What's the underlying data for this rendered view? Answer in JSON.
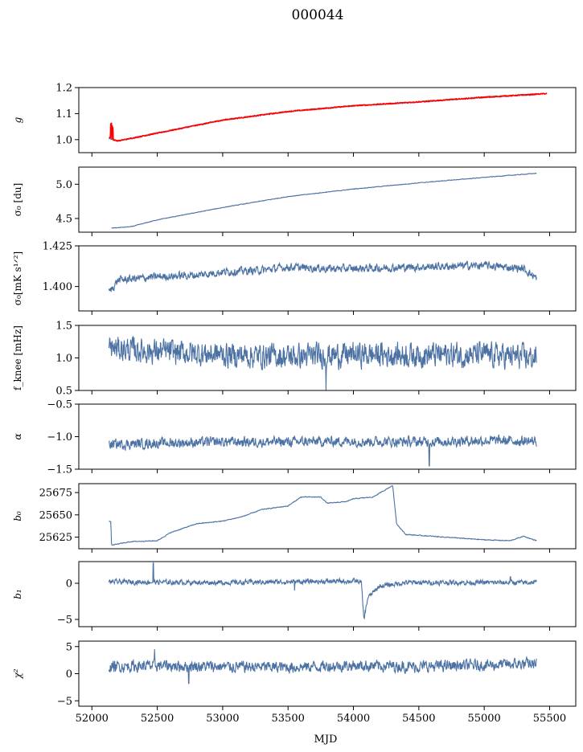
{
  "title": "000044",
  "xlabel": "MJD",
  "colors": {
    "series": "#4c72a4",
    "fit": "#ff0000",
    "axes": "#000000"
  },
  "chart_data": {
    "type": "line",
    "x_axis": {
      "range": [
        51900,
        55700
      ],
      "ticks": [
        52000,
        52500,
        53000,
        53500,
        54000,
        54500,
        55000,
        55500
      ],
      "tick_labels": [
        "52000",
        "52500",
        "53000",
        "53500",
        "54000",
        "54500",
        "55000",
        "55500"
      ]
    },
    "x_start": 52130,
    "x_end": 55400,
    "panels": [
      {
        "key": "g",
        "ylabel": "g",
        "ylim": [
          0.95,
          1.2
        ],
        "yticks": [
          1.0,
          1.1,
          1.2
        ],
        "ytick_labels": [
          "1.0",
          "1.1",
          "1.2"
        ],
        "series": [
          {
            "color": "#4c72a4",
            "anchors": [
              [
                52130,
                1.005
              ],
              [
                52150,
                1.0
              ],
              [
                52200,
                0.995
              ],
              [
                52300,
                1.005
              ],
              [
                52500,
                1.025
              ],
              [
                52800,
                1.055
              ],
              [
                53000,
                1.075
              ],
              [
                53500,
                1.108
              ],
              [
                54000,
                1.13
              ],
              [
                54500,
                1.145
              ],
              [
                55000,
                1.162
              ],
              [
                55400,
                1.174
              ]
            ],
            "noise": 0.002,
            "spikes": []
          },
          {
            "color": "#ff0000",
            "anchors": [
              [
                52130,
                1.01
              ],
              [
                52160,
                1.0
              ],
              [
                52200,
                0.995
              ],
              [
                52300,
                1.005
              ],
              [
                52500,
                1.025
              ],
              [
                52800,
                1.055
              ],
              [
                53000,
                1.075
              ],
              [
                53500,
                1.108
              ],
              [
                54000,
                1.13
              ],
              [
                54500,
                1.145
              ],
              [
                55000,
                1.163
              ],
              [
                55480,
                1.177
              ]
            ],
            "noise": 0.0015,
            "spikes": [
              [
                52145,
                1.06
              ],
              [
                52150,
                1.065
              ],
              [
                52155,
                1.055
              ],
              [
                52160,
                1.045
              ]
            ]
          }
        ]
      },
      {
        "key": "sigma0_du",
        "ylabel": "σ₀ [du]",
        "ylim": [
          4.3,
          5.25
        ],
        "yticks": [
          4.5,
          5.0
        ],
        "ytick_labels": [
          "4.5",
          "5.0"
        ],
        "series": [
          {
            "color": "#4c72a4",
            "anchors": [
              [
                52150,
                4.36
              ],
              [
                52300,
                4.38
              ],
              [
                52500,
                4.48
              ],
              [
                53000,
                4.66
              ],
              [
                53500,
                4.82
              ],
              [
                54000,
                4.93
              ],
              [
                54500,
                5.02
              ],
              [
                55000,
                5.1
              ],
              [
                55400,
                5.16
              ]
            ],
            "noise": 0.004,
            "spikes": []
          }
        ]
      },
      {
        "key": "sigma0_mK",
        "ylabel": "σ₀[mK s¹ᐟ²]",
        "ylim": [
          1.385,
          1.425
        ],
        "yticks": [
          1.4,
          1.425
        ],
        "ytick_labels": [
          "1.400",
          "1.425"
        ],
        "series": [
          {
            "color": "#4c72a4",
            "anchors": [
              [
                52130,
                1.396
              ],
              [
                52200,
                1.404
              ],
              [
                52500,
                1.406
              ],
              [
                52800,
                1.407
              ],
              [
                53000,
                1.409
              ],
              [
                53300,
                1.41
              ],
              [
                53500,
                1.412
              ],
              [
                53800,
                1.411
              ],
              [
                54000,
                1.411
              ],
              [
                54500,
                1.412
              ],
              [
                55000,
                1.413
              ],
              [
                55300,
                1.411
              ],
              [
                55400,
                1.405
              ]
            ],
            "noise": 0.0022,
            "spikes": []
          }
        ]
      },
      {
        "key": "fknee",
        "ylabel": "f_knee [mHz]",
        "ylim": [
          0.5,
          1.5
        ],
        "yticks": [
          0.5,
          1.0,
          1.5
        ],
        "ytick_labels": [
          "0.5",
          "1.0",
          "1.5"
        ],
        "series": [
          {
            "color": "#4c72a4",
            "anchors": [
              [
                52130,
                1.15
              ],
              [
                52500,
                1.1
              ],
              [
                53000,
                1.05
              ],
              [
                53500,
                1.02
              ],
              [
                54000,
                1.05
              ],
              [
                54500,
                1.05
              ],
              [
                55000,
                1.05
              ],
              [
                55400,
                1.0
              ]
            ],
            "noise": 0.17,
            "spikes": [
              [
                53790,
                0.5
              ]
            ]
          }
        ]
      },
      {
        "key": "alpha",
        "ylabel": "α",
        "ylim": [
          -1.5,
          -0.5
        ],
        "yticks": [
          -1.5,
          -1.0,
          -0.5
        ],
        "ytick_labels": [
          "−1.5",
          "−1.0",
          "−0.5"
        ],
        "series": [
          {
            "color": "#4c72a4",
            "anchors": [
              [
                52130,
                -1.12
              ],
              [
                52500,
                -1.1
              ],
              [
                53000,
                -1.08
              ],
              [
                53500,
                -1.08
              ],
              [
                54000,
                -1.07
              ],
              [
                54500,
                -1.08
              ],
              [
                55000,
                -1.06
              ],
              [
                55400,
                -1.07
              ]
            ],
            "noise": 0.07,
            "spikes": [
              [
                54580,
                -1.45
              ]
            ]
          }
        ]
      },
      {
        "key": "b0",
        "ylabel": "b₀",
        "ylim": [
          25612,
          25685
        ],
        "yticks": [
          25625,
          25650,
          25675
        ],
        "ytick_labels": [
          "25625",
          "25650",
          "25675"
        ],
        "series": [
          {
            "color": "#4c72a4",
            "anchors": [
              [
                52130,
                25643
              ],
              [
                52145,
                25642
              ],
              [
                52150,
                25616
              ],
              [
                52300,
                25620
              ],
              [
                52500,
                25621
              ],
              [
                52600,
                25630
              ],
              [
                52800,
                25640
              ],
              [
                53000,
                25643
              ],
              [
                53150,
                25648
              ],
              [
                53300,
                25656
              ],
              [
                53500,
                25660
              ],
              [
                53600,
                25670
              ],
              [
                53750,
                25670
              ],
              [
                53800,
                25663
              ],
              [
                53950,
                25665
              ],
              [
                54000,
                25668
              ],
              [
                54150,
                25670
              ],
              [
                54300,
                25683
              ],
              [
                54330,
                25640
              ],
              [
                54400,
                25628
              ],
              [
                54500,
                25627
              ],
              [
                55000,
                25622
              ],
              [
                55200,
                25621
              ],
              [
                55300,
                25626
              ],
              [
                55400,
                25621
              ]
            ],
            "noise": 0.4,
            "spikes": []
          }
        ]
      },
      {
        "key": "b1",
        "ylabel": "b₁",
        "ylim": [
          -6,
          3
        ],
        "yticks": [
          -5,
          0
        ],
        "ytick_labels": [
          "−5",
          "0"
        ],
        "series": [
          {
            "color": "#4c72a4",
            "anchors": [
              [
                52130,
                0.2
              ],
              [
                53000,
                0.1
              ],
              [
                54000,
                0.3
              ],
              [
                54060,
                0.2
              ],
              [
                54080,
                -5.0
              ],
              [
                54110,
                -2.0
              ],
              [
                54200,
                -0.4
              ],
              [
                54400,
                0.1
              ],
              [
                55400,
                0.1
              ]
            ],
            "noise": 0.3,
            "spikes": [
              [
                52470,
                2.8
              ],
              [
                53550,
                -1.0
              ],
              [
                55200,
                0.9
              ]
            ]
          }
        ]
      },
      {
        "key": "chi2",
        "ylabel": "χ²",
        "ylim": [
          -6,
          6
        ],
        "yticks": [
          -5,
          0,
          5
        ],
        "ytick_labels": [
          "−5",
          "0",
          "5"
        ],
        "series": [
          {
            "color": "#4c72a4",
            "anchors": [
              [
                52130,
                1.3
              ],
              [
                52500,
                1.5
              ],
              [
                53000,
                1.3
              ],
              [
                53500,
                1.2
              ],
              [
                54000,
                1.5
              ],
              [
                54500,
                1.3
              ],
              [
                55000,
                1.6
              ],
              [
                55400,
                1.8
              ]
            ],
            "noise": 0.95,
            "spikes": [
              [
                52480,
                4.5
              ],
              [
                52740,
                -1.8
              ]
            ]
          }
        ]
      }
    ]
  }
}
